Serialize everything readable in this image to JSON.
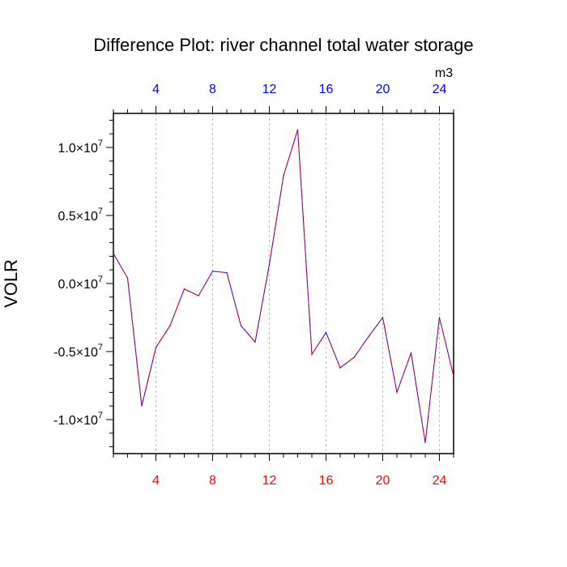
{
  "chart_data": {
    "type": "line",
    "title": "Difference Plot: river channel total water storage",
    "ylabel": "VOLR",
    "units_label": "m3",
    "xlim": [
      1,
      25
    ],
    "ylim": [
      -12500000,
      12500000
    ],
    "x_ticks": [
      4,
      8,
      12,
      16,
      20,
      24
    ],
    "x_tick_labels": [
      "4",
      "8",
      "12",
      "16",
      "20",
      "24"
    ],
    "y_ticks": [
      -10000000,
      -5000000,
      0,
      5000000,
      10000000
    ],
    "y_tick_labels": [
      {
        "mantissa": "-1.0",
        "times": "×",
        "base": "10",
        "exponent": "7"
      },
      {
        "mantissa": "-0.5",
        "times": "×",
        "base": "10",
        "exponent": "7"
      },
      {
        "mantissa": "0.0",
        "times": "×",
        "base": "10",
        "exponent": "7"
      },
      {
        "mantissa": "0.5",
        "times": "×",
        "base": "10",
        "exponent": "7"
      },
      {
        "mantissa": "1.0",
        "times": "×",
        "base": "10",
        "exponent": "7"
      }
    ],
    "grid": "vertical dashed at major x ticks",
    "series": [
      {
        "x": [
          1,
          2,
          3,
          4,
          5,
          6,
          7,
          8,
          9,
          10,
          11,
          12,
          13,
          14,
          15,
          16,
          17,
          18,
          19,
          20,
          21,
          22,
          23,
          24,
          25
        ],
        "values": [
          2200000,
          400000,
          -9000000,
          -4700000,
          -3100000,
          -400000,
          -900000,
          900000,
          800000,
          -3100000,
          -4300000,
          1400000,
          7900000,
          11300000,
          -5200000,
          -3600000,
          -6200000,
          -5400000,
          -3900000,
          -2500000,
          -8000000,
          -5100000,
          -11700000,
          -2500000,
          -6800000
        ],
        "color_a": "#ff0000",
        "color_b": "#0000ff"
      }
    ],
    "colors": {
      "bottom_tick_labels": "#ff0000",
      "top_tick_labels": "#0000ff",
      "axis": "#000000",
      "grid": "#aaaaaa"
    }
  }
}
